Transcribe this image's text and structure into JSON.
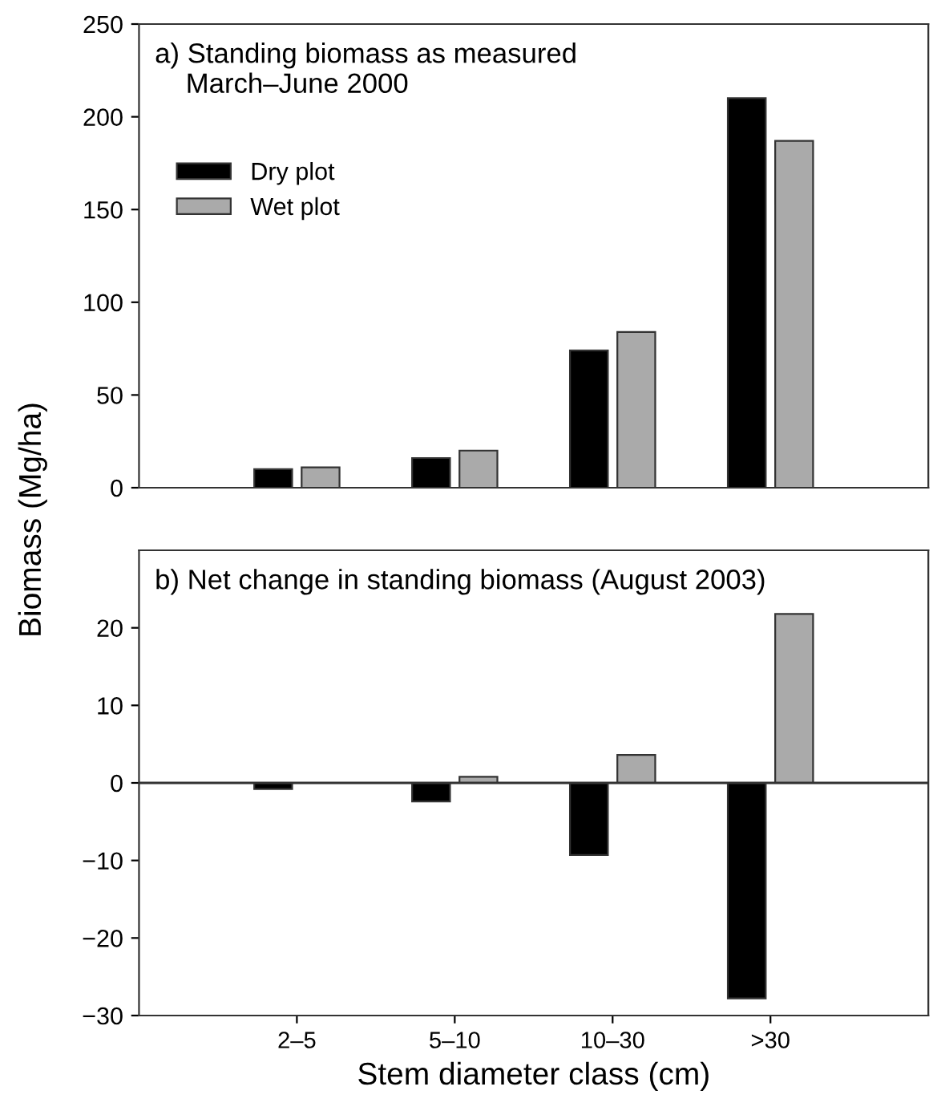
{
  "chart_data": [
    {
      "type": "bar",
      "title": "a) Standing biomass as measured\n    March–June 2000",
      "ylabel": "Biomass (Mg/ha)",
      "categories": [
        null,
        null,
        null,
        null
      ],
      "ylim": [
        0,
        250
      ],
      "yticks": [
        0,
        50,
        100,
        150,
        200,
        250
      ],
      "tick_labels": "y",
      "legend": "top left",
      "grid": false,
      "series": [
        {
          "name": "Dry plot",
          "color": "#000000",
          "values": [
            10,
            16,
            74,
            210
          ]
        },
        {
          "name": "Wet plot",
          "color": "#aaaaaa",
          "values": [
            11,
            20,
            84,
            187
          ]
        }
      ]
    },
    {
      "type": "bar",
      "title": "b) Net change in standing biomass (August 2003)",
      "xlabel": "Stem diameter class (cm)",
      "categories": [
        "2–5",
        "5–10",
        "10–30",
        ">30"
      ],
      "ylim": [
        -30,
        30
      ],
      "yticks": [
        {
          "value": -30,
          "label": "−30"
        },
        {
          "value": -20,
          "label": "−20"
        },
        {
          "value": -10,
          "label": "−10"
        },
        0,
        10,
        20
      ],
      "grid": false,
      "ref_lines": [
        {
          "axis": "y",
          "value": 0
        }
      ],
      "series": [
        {
          "color": "#000000",
          "values": [
            -0.8,
            -2.4,
            -9.3,
            -27.8
          ]
        },
        {
          "color": "#aaaaaa",
          "values": [
            null,
            0.8,
            3.6,
            21.8
          ]
        }
      ]
    }
  ]
}
